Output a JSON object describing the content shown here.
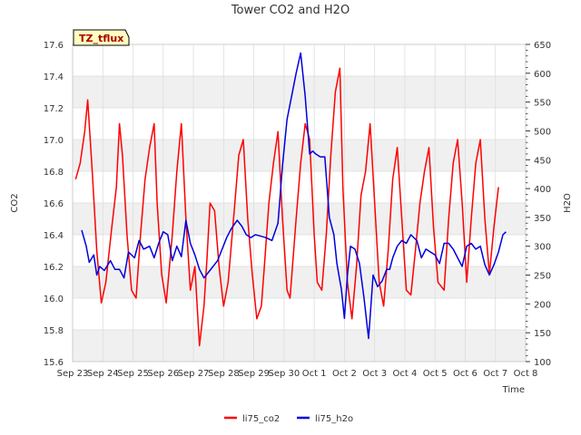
{
  "chart_data": {
    "type": "line",
    "title": "Tower CO2 and H2O",
    "badge": "TZ_tflux",
    "xlabel": "Time",
    "ylabel_left": "CO2",
    "ylabel_right": "H2O",
    "ylim_left": [
      15.6,
      17.6
    ],
    "ylim_right": [
      100,
      650
    ],
    "xlim_days": [
      0,
      15
    ],
    "x_ticks": [
      "Sep 23",
      "Sep 24",
      "Sep 25",
      "Sep 26",
      "Sep 27",
      "Sep 28",
      "Sep 29",
      "Sep 30",
      "Oct 1",
      "Oct 2",
      "Oct 3",
      "Oct 4",
      "Oct 5",
      "Oct 6",
      "Oct 7",
      "Oct 8"
    ],
    "y_ticks_left": [
      "15.6",
      "15.8",
      "16.0",
      "16.2",
      "16.4",
      "16.6",
      "16.8",
      "17.0",
      "17.2",
      "17.4",
      "17.6"
    ],
    "y_ticks_right": [
      "100",
      "150",
      "200",
      "250",
      "300",
      "350",
      "400",
      "450",
      "500",
      "550",
      "600",
      "650"
    ],
    "colors": {
      "co2": "#ff0000",
      "h2o": "#0000dd",
      "band": "#f0f0f0",
      "grid": "#dddddd"
    },
    "series": [
      {
        "name": "li75_co2",
        "axis": "left",
        "x": [
          0.1,
          0.25,
          0.4,
          0.5,
          0.65,
          0.8,
          0.95,
          1.1,
          1.3,
          1.45,
          1.55,
          1.65,
          1.8,
          1.95,
          2.1,
          2.25,
          2.4,
          2.55,
          2.7,
          2.8,
          2.95,
          3.1,
          3.3,
          3.45,
          3.6,
          3.75,
          3.9,
          4.05,
          4.2,
          4.35,
          4.45,
          4.55,
          4.7,
          4.85,
          5.0,
          5.15,
          5.35,
          5.5,
          5.65,
          5.8,
          5.95,
          6.1,
          6.25,
          6.35,
          6.5,
          6.65,
          6.8,
          6.95,
          7.1,
          7.2,
          7.4,
          7.55,
          7.7,
          7.85,
          8.0,
          8.1,
          8.25,
          8.4,
          8.55,
          8.7,
          8.85,
          8.95,
          9.1,
          9.25,
          9.4,
          9.55,
          9.7,
          9.85,
          10.0,
          10.15,
          10.3,
          10.45,
          10.6,
          10.75,
          10.9,
          11.05,
          11.2,
          11.35,
          11.5,
          11.65,
          11.8,
          11.95,
          12.1,
          12.3,
          12.45,
          12.6,
          12.75,
          12.9,
          13.05,
          13.2,
          13.35,
          13.5,
          13.65,
          13.8,
          13.95,
          14.1
        ],
        "values": [
          16.75,
          16.85,
          17.05,
          17.25,
          16.8,
          16.3,
          15.97,
          16.1,
          16.45,
          16.7,
          17.1,
          16.9,
          16.4,
          16.05,
          16.0,
          16.4,
          16.75,
          16.95,
          17.1,
          16.6,
          16.15,
          15.97,
          16.4,
          16.8,
          17.1,
          16.5,
          16.05,
          16.2,
          15.7,
          15.95,
          16.25,
          16.6,
          16.55,
          16.2,
          15.95,
          16.1,
          16.55,
          16.9,
          17.0,
          16.5,
          16.15,
          15.87,
          15.95,
          16.2,
          16.6,
          16.85,
          17.05,
          16.5,
          16.05,
          16.0,
          16.5,
          16.85,
          17.1,
          17.0,
          16.4,
          16.1,
          16.05,
          16.4,
          16.9,
          17.3,
          17.45,
          16.7,
          16.1,
          15.87,
          16.2,
          16.65,
          16.8,
          17.1,
          16.6,
          16.1,
          15.95,
          16.3,
          16.75,
          16.95,
          16.5,
          16.05,
          16.02,
          16.3,
          16.6,
          16.8,
          16.95,
          16.45,
          16.1,
          16.05,
          16.5,
          16.85,
          17.0,
          16.6,
          16.1,
          16.5,
          16.85,
          17.0,
          16.5,
          16.15,
          16.45,
          16.7
        ]
      },
      {
        "name": "li75_h2o",
        "axis": "right",
        "x": [
          0.3,
          0.45,
          0.55,
          0.7,
          0.8,
          0.9,
          1.05,
          1.25,
          1.4,
          1.55,
          1.7,
          1.85,
          2.05,
          2.2,
          2.35,
          2.55,
          2.7,
          2.85,
          3.0,
          3.15,
          3.3,
          3.45,
          3.6,
          3.75,
          3.9,
          4.05,
          4.2,
          4.35,
          4.5,
          4.65,
          4.8,
          4.95,
          5.1,
          5.25,
          5.45,
          5.6,
          5.75,
          5.9,
          6.05,
          6.2,
          6.4,
          6.6,
          6.8,
          6.95,
          7.1,
          7.25,
          7.4,
          7.55,
          7.7,
          7.85,
          7.95,
          8.05,
          8.2,
          8.35,
          8.5,
          8.65,
          8.75,
          8.9,
          9.0,
          9.1,
          9.2,
          9.35,
          9.5,
          9.65,
          9.8,
          9.95,
          10.1,
          10.25,
          10.4,
          10.5,
          10.6,
          10.75,
          10.9,
          11.05,
          11.2,
          11.4,
          11.55,
          11.7,
          11.85,
          12.0,
          12.15,
          12.3,
          12.45,
          12.6,
          12.75,
          12.9,
          13.05,
          13.2,
          13.35,
          13.5,
          13.65,
          13.8,
          13.95,
          14.1,
          14.25,
          14.35
        ],
        "values": [
          328,
          300,
          272,
          285,
          250,
          265,
          258,
          275,
          260,
          260,
          245,
          290,
          280,
          310,
          295,
          300,
          280,
          305,
          325,
          320,
          275,
          300,
          282,
          345,
          305,
          285,
          260,
          245,
          255,
          265,
          275,
          295,
          315,
          330,
          345,
          335,
          320,
          315,
          320,
          318,
          315,
          310,
          340,
          440,
          520,
          560,
          600,
          635,
          560,
          460,
          465,
          460,
          455,
          455,
          350,
          320,
          270,
          225,
          175,
          250,
          300,
          295,
          270,
          210,
          140,
          250,
          230,
          240,
          260,
          260,
          280,
          300,
          310,
          305,
          320,
          310,
          280,
          295,
          290,
          285,
          270,
          305,
          305,
          295,
          280,
          265,
          300,
          305,
          295,
          300,
          268,
          250,
          268,
          290,
          320,
          325
        ]
      }
    ]
  }
}
